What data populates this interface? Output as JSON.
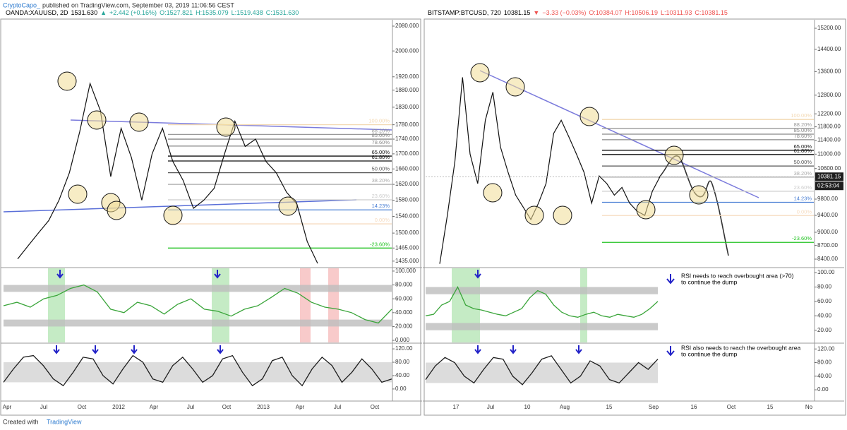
{
  "header": {
    "author": "CryptoCapo_",
    "published": "published on TradingView.com, September 03, 2019 11:06:56 CEST"
  },
  "panels": [
    {
      "symbol": "OANDA:XAUUSD, 2D",
      "last": "1531.630",
      "change": "+2.442 (+0.16%)",
      "direction": "up",
      "ohlc": [
        "O:1527.821",
        "H:1535.079",
        "L:1519.438",
        "C:1531.630"
      ],
      "price_scale": {
        "log": true,
        "ylim": [
          1422,
          2101
        ],
        "ticks": [
          {
            "value": 2080,
            "label": "2080.000"
          },
          {
            "value": 2000,
            "label": "2000.000"
          },
          {
            "value": 1920,
            "label": "1920.000"
          },
          {
            "value": 1880,
            "label": "1880.000"
          },
          {
            "value": 1830,
            "label": "1830.000"
          },
          {
            "value": 1780,
            "label": "1780.000"
          },
          {
            "value": 1740,
            "label": "1740.000"
          },
          {
            "value": 1700,
            "label": "1700.000"
          },
          {
            "value": 1660,
            "label": "1660.000"
          },
          {
            "value": 1620,
            "label": "1620.000"
          },
          {
            "value": 1580,
            "label": "1580.000"
          },
          {
            "value": 1540,
            "label": "1540.000"
          },
          {
            "value": 1500,
            "label": "1500.000"
          },
          {
            "value": 1465,
            "label": "1465.000"
          },
          {
            "value": 1435,
            "label": "1435.000"
          }
        ]
      },
      "fib": [
        {
          "label": "100.00%",
          "value": 1780,
          "color": "#f3d9b3"
        },
        {
          "label": "88.20%",
          "value": 1753,
          "color": "#999"
        },
        {
          "label": "85.00%",
          "value": 1740,
          "color": "#888"
        },
        {
          "label": "78.60%",
          "value": 1721,
          "color": "#888"
        },
        {
          "label": "65.00%",
          "value": 1694,
          "color": "#111"
        },
        {
          "label": "61.80%",
          "value": 1681,
          "color": "#111"
        },
        {
          "label": "50.00%",
          "value": 1650,
          "color": "#555"
        },
        {
          "label": "38.20%",
          "value": 1620,
          "color": "#aaa"
        },
        {
          "label": "23.60%",
          "value": 1581,
          "color": "#ccc"
        },
        {
          "label": "14.23%",
          "value": 1556,
          "color": "#4a7fd4"
        },
        {
          "label": "0.00%",
          "value": 1522,
          "color": "#f6dcc0"
        },
        {
          "label": "-23.60%",
          "value": 1465,
          "color": "#22c322"
        }
      ],
      "price": [
        1440,
        1470,
        1500,
        1530,
        1580,
        1650,
        1760,
        1900,
        1820,
        1640,
        1770,
        1690,
        1580,
        1700,
        1770,
        1680,
        1630,
        1560,
        1580,
        1610,
        1700,
        1790,
        1720,
        1740,
        1680,
        1650,
        1600,
        1570,
        1480,
        1430
      ],
      "rsi": {
        "ylim": [
          -3,
          104
        ],
        "ticks": [
          {
            "value": 100,
            "label": "100.000"
          },
          {
            "value": 80,
            "label": "80.000"
          },
          {
            "value": 60,
            "label": "60.000"
          },
          {
            "value": 40,
            "label": "40.000"
          },
          {
            "value": 20,
            "label": "20.000"
          },
          {
            "value": 0,
            "label": "0.000"
          }
        ],
        "bands": [
          [
            70,
            80
          ],
          [
            20,
            30
          ]
        ],
        "values": [
          50,
          55,
          48,
          60,
          65,
          75,
          80,
          70,
          45,
          40,
          55,
          50,
          38,
          52,
          60,
          45,
          42,
          35,
          45,
          50,
          62,
          75,
          68,
          55,
          48,
          45,
          40,
          30,
          25,
          45
        ]
      },
      "stoch": {
        "ylim": [
          -34,
          135
        ],
        "ticks": [
          {
            "value": 120,
            "label": "120.00"
          },
          {
            "value": 80,
            "label": "80.00"
          },
          {
            "value": 40,
            "label": "40.00"
          },
          {
            "value": 0,
            "label": "0.00"
          }
        ],
        "bands": [
          [
            20,
            80
          ]
        ],
        "values": [
          20,
          60,
          95,
          100,
          70,
          30,
          10,
          50,
          95,
          90,
          40,
          15,
          60,
          100,
          80,
          30,
          20,
          70,
          95,
          60,
          20,
          40,
          90,
          100,
          50,
          10,
          30,
          85,
          95,
          40,
          10,
          60,
          95,
          70,
          20,
          50,
          90,
          60,
          20,
          30
        ]
      },
      "time_labels": [
        "Apr",
        "Jul",
        "Oct",
        "2012",
        "Apr",
        "Jul",
        "Oct",
        "2013",
        "Apr",
        "Jul",
        "Oct"
      ]
    },
    {
      "symbol": "BITSTAMP:BTCUSD, 720",
      "last": "10381.15",
      "change": "−3.33 (−0.03%)",
      "direction": "down",
      "ohlc": [
        "O:10384.07",
        "H:10506.19",
        "L:10311.93",
        "C:10381.15"
      ],
      "countdown": "02:53:04",
      "price_scale": {
        "log": true,
        "ylim": [
          8234,
          15535
        ],
        "ticks": [
          {
            "value": 15200,
            "label": "15200.00"
          },
          {
            "value": 14400,
            "label": "14400.00"
          },
          {
            "value": 13600,
            "label": "13600.00"
          },
          {
            "value": 12800,
            "label": "12800.00"
          },
          {
            "value": 12200,
            "label": "12200.00"
          },
          {
            "value": 11800,
            "label": "11800.00"
          },
          {
            "value": 11400,
            "label": "11400.00"
          },
          {
            "value": 11000,
            "label": "11000.00"
          },
          {
            "value": 10600,
            "label": "10600.00"
          },
          {
            "value": 9800,
            "label": "9800.00"
          },
          {
            "value": 9400,
            "label": "9400.00"
          },
          {
            "value": 9000,
            "label": "9000.00"
          },
          {
            "value": 8700,
            "label": "8700.00"
          },
          {
            "value": 8400,
            "label": "8400.00"
          }
        ]
      },
      "fib": [
        {
          "label": "100.00%",
          "value": 12025,
          "color": "#f3d9b3"
        },
        {
          "label": "88.20%",
          "value": 11750,
          "color": "#999"
        },
        {
          "label": "85.00%",
          "value": 11580,
          "color": "#888"
        },
        {
          "label": "78.60%",
          "value": 11415,
          "color": "#888"
        },
        {
          "label": "65.00%",
          "value": 11110,
          "color": "#111"
        },
        {
          "label": "61.80%",
          "value": 10990,
          "color": "#111"
        },
        {
          "label": "50.00%",
          "value": 10670,
          "color": "#555"
        },
        {
          "label": "38.20%",
          "value": 10370,
          "color": "#aaa"
        },
        {
          "label": "23.60%",
          "value": 10000,
          "color": "#ccc"
        },
        {
          "label": "14.23%",
          "value": 9720,
          "color": "#4a7fd4"
        },
        {
          "label": "0.00%",
          "value": 9395,
          "color": "#f6dcc0"
        },
        {
          "label": "-23.60%",
          "value": 8770,
          "color": "#22c322"
        }
      ],
      "price": [
        8300,
        9400,
        10800,
        13400,
        11000,
        10200,
        12000,
        12900,
        11200,
        10500,
        9900,
        9600,
        9300,
        9700,
        10200,
        11600,
        12000,
        11500,
        11000,
        10500,
        9700,
        10400,
        10200,
        9900,
        10100,
        9700,
        9500,
        9400,
        10000,
        10381
      ],
      "rsi": {
        "ylim": [
          3,
          106
        ],
        "ticks": [
          {
            "value": 100,
            "label": "100.00"
          },
          {
            "value": 80,
            "label": "80.00"
          },
          {
            "value": 60,
            "label": "60.00"
          },
          {
            "value": 40,
            "label": "40.00"
          },
          {
            "value": 20,
            "label": "20.00"
          }
        ],
        "bands": [
          [
            70,
            80
          ],
          [
            20,
            30
          ]
        ],
        "values": [
          40,
          42,
          55,
          60,
          80,
          55,
          50,
          48,
          45,
          42,
          40,
          45,
          50,
          65,
          75,
          70,
          55,
          45,
          40,
          38,
          42,
          45,
          40,
          38,
          42,
          40,
          38,
          42,
          50,
          60
        ]
      },
      "stoch": {
        "ylim": [
          -31,
          135
        ],
        "ticks": [
          {
            "value": 120,
            "label": "120.00"
          },
          {
            "value": 80,
            "label": "80.00"
          },
          {
            "value": 40,
            "label": "40.00"
          },
          {
            "value": 0,
            "label": "0.00"
          }
        ],
        "bands": [
          [
            20,
            80
          ]
        ],
        "values": [
          30,
          70,
          95,
          80,
          40,
          20,
          60,
          95,
          90,
          40,
          15,
          50,
          90,
          100,
          60,
          20,
          40,
          85,
          70,
          30,
          20,
          50,
          80,
          60,
          90
        ]
      },
      "time_labels": [
        "17",
        "Jul",
        "10",
        "Aug",
        "15",
        "Sep",
        "16",
        "Oct",
        "15",
        "No"
      ],
      "notes": [
        [
          "RSI needs to reach overbought area (>70)",
          "to continue the dump"
        ],
        [
          "RSI also needs to reach the overbought area",
          "to continue the dump"
        ]
      ]
    }
  ],
  "footer": {
    "created": "Created with",
    "brand": "TradingView"
  }
}
